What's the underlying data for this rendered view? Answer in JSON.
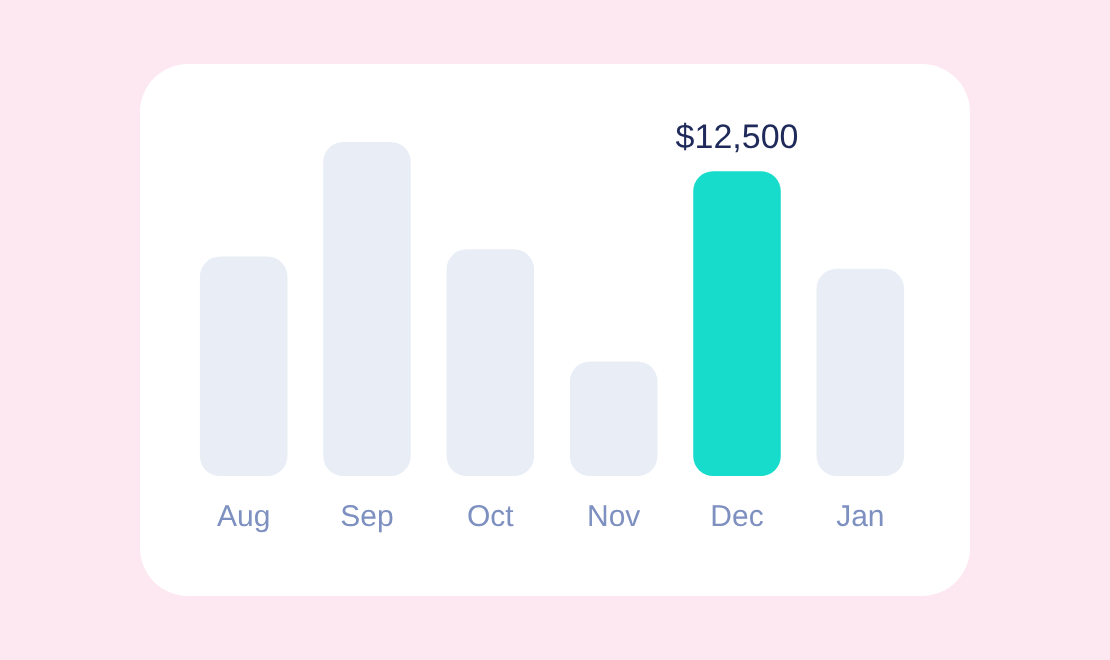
{
  "chart_data": {
    "type": "bar",
    "categories": [
      "Aug",
      "Sep",
      "Oct",
      "Nov",
      "Dec",
      "Jan"
    ],
    "values": [
      9000,
      13700,
      9300,
      4700,
      12500,
      8500
    ],
    "colors": [
      "#e9eef6",
      "#e9eef6",
      "#e9eef6",
      "#e9eef6",
      "#17dccc",
      "#e9eef6"
    ],
    "value_labels": [
      null,
      null,
      null,
      null,
      "$12,500",
      null
    ],
    "tick_labels": "x",
    "grid": false,
    "legend": false
  }
}
